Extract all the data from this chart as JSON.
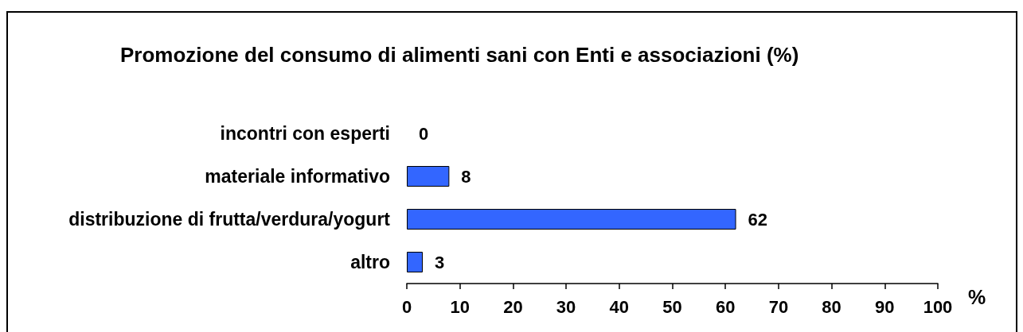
{
  "chart_data": {
    "type": "bar",
    "orientation": "horizontal",
    "title": "Promozione del consumo di alimenti sani con Enti e associazioni (%)",
    "xlabel": "%",
    "categories": [
      "incontri con esperti",
      "materiale informativo",
      "distribuzione di frutta/verdura/yogurt",
      "altro"
    ],
    "values": [
      0,
      8,
      62,
      3
    ],
    "color": "#3366ff",
    "data_labels": true,
    "xlim": [
      0,
      100
    ],
    "xticks": [
      0,
      10,
      20,
      30,
      40,
      50,
      60,
      70,
      80,
      90,
      100
    ]
  }
}
